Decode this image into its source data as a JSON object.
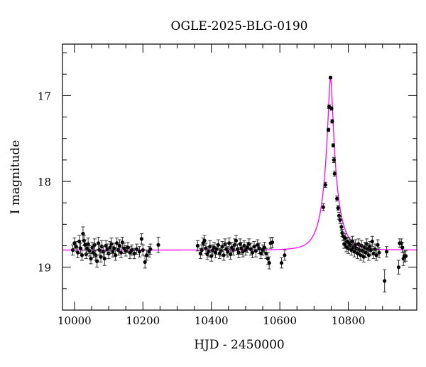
{
  "chart_data": {
    "type": "scatter",
    "title": "OGLE-2025-BLG-0190",
    "xlabel": "HJD - 2450000",
    "ylabel": "I magnitude",
    "xlim": [
      9965,
      11000
    ],
    "ylim": [
      19.5,
      16.4
    ],
    "y_inverted": true,
    "grid": false,
    "xticks": [
      10000,
      10200,
      10400,
      10600,
      10800
    ],
    "xtick_labels": [
      "10000",
      "10200",
      "10400",
      "10600",
      "10800"
    ],
    "yticks": [
      17,
      18,
      19
    ],
    "ytick_labels": [
      "17",
      "18",
      "19"
    ],
    "colors": {
      "points": "#000000",
      "model": "#ff00ff"
    },
    "model": {
      "type": "point-lens",
      "baseline_mag": 18.8,
      "t0": 10748,
      "u0": 0.16,
      "tE": 37
    },
    "points": [
      [
        9995,
        18.8,
        0.06
      ],
      [
        10000,
        18.72,
        0.06
      ],
      [
        10005,
        18.76,
        0.06
      ],
      [
        10010,
        18.83,
        0.06
      ],
      [
        10014,
        18.7,
        0.07
      ],
      [
        10018,
        18.78,
        0.06
      ],
      [
        10022,
        18.86,
        0.06
      ],
      [
        10025,
        18.61,
        0.08
      ],
      [
        10028,
        18.69,
        0.06
      ],
      [
        10031,
        18.74,
        0.06
      ],
      [
        10034,
        18.85,
        0.05
      ],
      [
        10037,
        18.78,
        0.06
      ],
      [
        10040,
        18.73,
        0.07
      ],
      [
        10044,
        18.81,
        0.06
      ],
      [
        10048,
        18.9,
        0.06
      ],
      [
        10052,
        18.77,
        0.06
      ],
      [
        10055,
        18.83,
        0.06
      ],
      [
        10059,
        18.74,
        0.07
      ],
      [
        10062,
        18.86,
        0.06
      ],
      [
        10066,
        18.93,
        0.07
      ],
      [
        10070,
        18.72,
        0.07
      ],
      [
        10073,
        18.8,
        0.06
      ],
      [
        10077,
        18.88,
        0.06
      ],
      [
        10080,
        18.76,
        0.07
      ],
      [
        10084,
        18.82,
        0.06
      ],
      [
        10088,
        18.9,
        0.08
      ],
      [
        10092,
        18.75,
        0.06
      ],
      [
        10096,
        18.79,
        0.06
      ],
      [
        10100,
        18.84,
        0.06
      ],
      [
        10104,
        18.77,
        0.07
      ],
      [
        10108,
        18.73,
        0.07
      ],
      [
        10112,
        18.82,
        0.06
      ],
      [
        10116,
        18.78,
        0.06
      ],
      [
        10120,
        18.86,
        0.06
      ],
      [
        10124,
        18.72,
        0.06
      ],
      [
        10128,
        18.8,
        0.06
      ],
      [
        10132,
        18.75,
        0.07
      ],
      [
        10136,
        18.83,
        0.06
      ],
      [
        10140,
        18.71,
        0.06
      ],
      [
        10145,
        18.78,
        0.06
      ],
      [
        10150,
        18.81,
        0.06
      ],
      [
        10156,
        18.77,
        0.06
      ],
      [
        10162,
        18.83,
        0.07
      ],
      [
        10168,
        18.8,
        0.06
      ],
      [
        10175,
        18.84,
        0.06
      ],
      [
        10182,
        18.79,
        0.06
      ],
      [
        10190,
        18.82,
        0.06
      ],
      [
        10196,
        18.67,
        0.06
      ],
      [
        10200,
        18.8,
        0.06
      ],
      [
        10206,
        18.94,
        0.07
      ],
      [
        10211,
        18.86,
        0.06
      ],
      [
        10218,
        18.82,
        0.06
      ],
      [
        10222,
        18.79,
        0.06
      ],
      [
        10245,
        18.74,
        0.09
      ],
      [
        10360,
        18.75,
        0.06
      ],
      [
        10368,
        18.84,
        0.06
      ],
      [
        10372,
        18.8,
        0.06
      ],
      [
        10376,
        18.72,
        0.06
      ],
      [
        10380,
        18.69,
        0.06
      ],
      [
        10384,
        18.78,
        0.06
      ],
      [
        10388,
        18.85,
        0.06
      ],
      [
        10392,
        18.82,
        0.06
      ],
      [
        10396,
        18.76,
        0.07
      ],
      [
        10400,
        18.87,
        0.06
      ],
      [
        10404,
        18.8,
        0.06
      ],
      [
        10408,
        18.77,
        0.06
      ],
      [
        10412,
        18.83,
        0.06
      ],
      [
        10416,
        18.79,
        0.06
      ],
      [
        10420,
        18.74,
        0.06
      ],
      [
        10424,
        18.84,
        0.06
      ],
      [
        10428,
        18.81,
        0.06
      ],
      [
        10432,
        18.76,
        0.06
      ],
      [
        10436,
        18.86,
        0.06
      ],
      [
        10440,
        18.73,
        0.06
      ],
      [
        10444,
        18.79,
        0.07
      ],
      [
        10448,
        18.82,
        0.06
      ],
      [
        10452,
        18.72,
        0.06
      ],
      [
        10456,
        18.85,
        0.06
      ],
      [
        10460,
        18.77,
        0.06
      ],
      [
        10464,
        18.8,
        0.06
      ],
      [
        10468,
        18.74,
        0.07
      ],
      [
        10472,
        18.69,
        0.06
      ],
      [
        10476,
        18.79,
        0.06
      ],
      [
        10480,
        18.83,
        0.06
      ],
      [
        10484,
        18.73,
        0.06
      ],
      [
        10488,
        18.78,
        0.07
      ],
      [
        10492,
        18.82,
        0.06
      ],
      [
        10496,
        18.75,
        0.06
      ],
      [
        10500,
        18.8,
        0.06
      ],
      [
        10505,
        18.77,
        0.06
      ],
      [
        10510,
        18.73,
        0.06
      ],
      [
        10515,
        18.79,
        0.07
      ],
      [
        10520,
        18.83,
        0.06
      ],
      [
        10525,
        18.76,
        0.06
      ],
      [
        10530,
        18.81,
        0.07
      ],
      [
        10535,
        18.74,
        0.06
      ],
      [
        10540,
        18.78,
        0.06
      ],
      [
        10545,
        18.84,
        0.06
      ],
      [
        10550,
        18.8,
        0.06
      ],
      [
        10555,
        18.77,
        0.06
      ],
      [
        10560,
        18.84,
        0.06
      ],
      [
        10565,
        18.9,
        0.07
      ],
      [
        10569,
        18.95,
        0.07
      ],
      [
        10573,
        18.72,
        0.06
      ],
      [
        10578,
        18.71,
        0.06
      ],
      [
        10605,
        18.95,
        0.06
      ],
      [
        10614,
        18.86,
        0.06
      ],
      [
        10727,
        18.3,
        0.04
      ],
      [
        10733,
        18.04,
        0.03
      ],
      [
        10742,
        17.4,
        0.02
      ],
      [
        10744,
        17.13,
        0.02
      ],
      [
        10748,
        16.79,
        0.01
      ],
      [
        10751,
        17.15,
        0.02
      ],
      [
        10753,
        17.3,
        0.02
      ],
      [
        10756,
        17.58,
        0.02
      ],
      [
        10758,
        17.75,
        0.03
      ],
      [
        10760,
        17.91,
        0.03
      ],
      [
        10767,
        18.2,
        0.03
      ],
      [
        10770,
        18.31,
        0.03
      ],
      [
        10773,
        18.4,
        0.04
      ],
      [
        10776,
        18.45,
        0.04
      ],
      [
        10780,
        18.53,
        0.04
      ],
      [
        10782,
        18.6,
        0.04
      ],
      [
        10785,
        18.64,
        0.05
      ],
      [
        10788,
        18.73,
        0.05
      ],
      [
        10791,
        18.66,
        0.05
      ],
      [
        10794,
        18.76,
        0.06
      ],
      [
        10797,
        18.7,
        0.05
      ],
      [
        10800,
        18.78,
        0.06
      ],
      [
        10803,
        18.72,
        0.06
      ],
      [
        10806,
        18.74,
        0.06
      ],
      [
        10809,
        18.8,
        0.06
      ],
      [
        10812,
        18.7,
        0.06
      ],
      [
        10815,
        18.77,
        0.06
      ],
      [
        10818,
        18.82,
        0.06
      ],
      [
        10821,
        18.74,
        0.06
      ],
      [
        10824,
        18.78,
        0.06
      ],
      [
        10827,
        18.84,
        0.06
      ],
      [
        10830,
        18.73,
        0.06
      ],
      [
        10833,
        18.8,
        0.06
      ],
      [
        10836,
        18.86,
        0.06
      ],
      [
        10839,
        18.75,
        0.06
      ],
      [
        10842,
        18.81,
        0.06
      ],
      [
        10845,
        18.88,
        0.06
      ],
      [
        10848,
        18.77,
        0.06
      ],
      [
        10851,
        18.83,
        0.06
      ],
      [
        10854,
        18.73,
        0.06
      ],
      [
        10857,
        18.79,
        0.06
      ],
      [
        10860,
        18.86,
        0.06
      ],
      [
        10863,
        18.76,
        0.06
      ],
      [
        10866,
        18.8,
        0.06
      ],
      [
        10870,
        18.7,
        0.06
      ],
      [
        10874,
        18.84,
        0.06
      ],
      [
        10878,
        18.79,
        0.06
      ],
      [
        10882,
        18.86,
        0.06
      ],
      [
        10886,
        18.74,
        0.06
      ],
      [
        10890,
        18.83,
        0.06
      ],
      [
        10906,
        19.16,
        0.13
      ],
      [
        10912,
        18.82,
        0.06
      ],
      [
        10947,
        19.0,
        0.08
      ],
      [
        10950,
        18.72,
        0.05
      ],
      [
        10955,
        18.72,
        0.05
      ],
      [
        10958,
        18.77,
        0.06
      ],
      [
        10961,
        18.9,
        0.08
      ],
      [
        10964,
        18.87,
        0.07
      ],
      [
        10968,
        18.87,
        0.06
      ]
    ]
  }
}
